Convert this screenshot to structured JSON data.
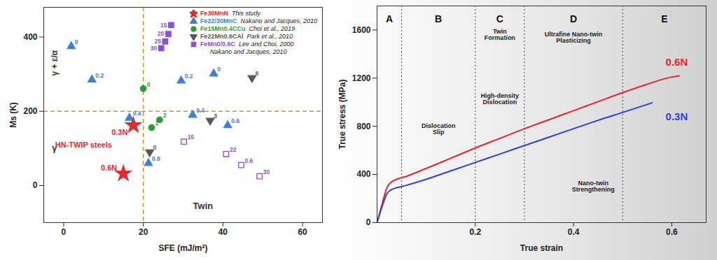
{
  "chart_data": [
    {
      "type": "scatter",
      "xlabel": "SFE (mJ/m²)",
      "ylabel": "Ms (K)",
      "xlim": [
        -5,
        65
      ],
      "xticks": [
        0,
        20,
        40,
        60
      ],
      "ylim": [
        -100,
        480
      ],
      "yticks": [
        0,
        200,
        400
      ],
      "grid": false,
      "legend": "top-right",
      "vlines": [
        20
      ],
      "hlines": [
        200
      ],
      "annotations": [
        "γ + ε/α",
        "γ",
        "HN-TWIP steels",
        "Twin"
      ],
      "series": [
        {
          "name": "Fe30MnN",
          "citation": "This study",
          "color": "#e8262e",
          "marker": "star",
          "x": [
            17.5,
            15
          ],
          "values": [
            162,
            32
          ],
          "labels": [
            "0.3N",
            "0.6N"
          ]
        },
        {
          "name": "Fe22/30MnC",
          "citation": "Nakano and Jacques, 2010",
          "color": "#3d7fd9",
          "marker": "triangle",
          "x": [
            1.9,
            7.1,
            16.5,
            21.3,
            29.5,
            32.4,
            37.7,
            41.2
          ],
          "values": [
            375,
            285,
            182,
            60,
            282,
            190,
            301,
            162
          ],
          "labels": [
            "0",
            "0.2",
            "0.4",
            "0.8",
            "0.2",
            "0.4",
            "0",
            "0.6"
          ]
        },
        {
          "name": "Fe15Mn0.4CCu",
          "citation": "Choi et al., 2019",
          "color": "#2e9a3c",
          "marker": "circle",
          "x": [
            20,
            22.1,
            24.1
          ],
          "values": [
            261,
            156,
            177
          ],
          "labels": [
            "0",
            "1",
            "2"
          ]
        },
        {
          "name": "Fe22Mn0.6CAl",
          "citation": "Park et al., 2010",
          "color": "#595959",
          "marker": "triangle-down",
          "x": [
            21.6,
            36.8,
            47.3
          ],
          "values": [
            90,
            175,
            290
          ],
          "labels": [
            "0",
            "3",
            "6"
          ]
        },
        {
          "name": "FeMn0/0.6C",
          "citation": [
            "Lee and Choi, 2000",
            "Nakano and Jacques, 2010"
          ],
          "color": "#8b4fd6",
          "markers": [
            "square",
            "square",
            "square",
            "square",
            "square-open",
            "square-open",
            "square-open",
            "square-open"
          ],
          "x": [
            24.5,
            25.5,
            26.3,
            27,
            30.2,
            40.8,
            44.6,
            49.2
          ],
          "values": [
            370,
            388,
            408,
            432,
            118,
            85,
            55,
            25
          ],
          "labels": [
            "30",
            "25",
            "20",
            "15",
            "15",
            "22",
            "0.6",
            "30"
          ]
        }
      ]
    },
    {
      "type": "line",
      "xlabel": "True strain",
      "ylabel": "True stress (MPa)",
      "xlim": [
        0,
        0.67
      ],
      "xticks": [
        0.2,
        0.4,
        0.6
      ],
      "ylim": [
        0,
        1800
      ],
      "yticks": [
        0,
        400,
        800,
        1200,
        1600
      ],
      "grid": false,
      "stage_bounds": [
        0.05,
        0.2,
        0.3,
        0.5
      ],
      "stages": [
        "A",
        "B",
        "C",
        "D",
        "E"
      ],
      "annotations": [
        "Dislocation Slip",
        "Twin Formation",
        "High-density Dislocation",
        "Ultrafine Nano-twin Plasticizing",
        "Nano-twin Strengthening"
      ],
      "series": [
        {
          "name": "0.6N",
          "color": "#e8262e",
          "x": [
            0,
            0.01,
            0.02,
            0.03,
            0.04,
            0.06,
            0.1,
            0.15,
            0.2,
            0.25,
            0.3,
            0.35,
            0.4,
            0.45,
            0.5,
            0.55,
            0.6,
            0.615
          ],
          "values": [
            0,
            150,
            290,
            340,
            360,
            385,
            450,
            535,
            620,
            700,
            780,
            855,
            930,
            1005,
            1080,
            1150,
            1210,
            1220
          ]
        },
        {
          "name": "0.3N",
          "color": "#2f3fe0",
          "x": [
            0,
            0.01,
            0.02,
            0.03,
            0.04,
            0.06,
            0.1,
            0.15,
            0.2,
            0.25,
            0.3,
            0.35,
            0.4,
            0.45,
            0.5,
            0.56
          ],
          "values": [
            0,
            130,
            240,
            275,
            290,
            310,
            360,
            430,
            500,
            570,
            640,
            710,
            780,
            850,
            915,
            995
          ]
        }
      ]
    }
  ]
}
